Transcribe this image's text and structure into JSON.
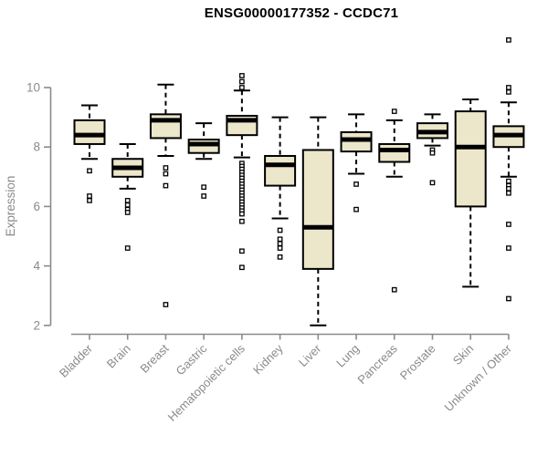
{
  "title": "ENSG00000177352 - CCDC71",
  "chart_data": {
    "type": "boxplot",
    "title": "ENSG00000177352 - CCDC71",
    "ylabel": "Expression",
    "xlabel": "",
    "yticks": [
      2,
      4,
      6,
      8,
      10
    ],
    "ylim": [
      2,
      10
    ],
    "grid": false,
    "legend": false,
    "colors": {
      "box_fill": "#ECE6CA",
      "box_border": "#000000",
      "median": "#000000",
      "whisker": "#000000",
      "axis": "#8a8a8a",
      "tick_label": "#8a8a8a",
      "title": "#000000",
      "background": "#ffffff"
    },
    "categories": [
      "Bladder",
      "Brain",
      "Breast",
      "Gastric",
      "Hematopoietic cells",
      "Kidney",
      "Liver",
      "Lung",
      "Pancreas",
      "Prostate",
      "Skin",
      "Unknown / Other"
    ],
    "boxes": [
      {
        "category": "Bladder",
        "whisker_low": 7.6,
        "q1": 8.1,
        "median": 8.4,
        "q3": 8.9,
        "whisker_high": 9.4,
        "outliers": [
          7.2,
          6.35,
          6.2
        ]
      },
      {
        "category": "Brain",
        "whisker_low": 6.6,
        "q1": 7.0,
        "median": 7.3,
        "q3": 7.6,
        "whisker_high": 8.1,
        "outliers": [
          6.2,
          6.05,
          5.9,
          5.8,
          4.6
        ]
      },
      {
        "category": "Breast",
        "whisker_low": 7.7,
        "q1": 8.3,
        "median": 8.9,
        "q3": 9.1,
        "whisker_high": 10.1,
        "outliers": [
          7.3,
          7.1,
          6.7,
          2.7
        ]
      },
      {
        "category": "Gastric",
        "whisker_low": 7.6,
        "q1": 7.8,
        "median": 8.1,
        "q3": 8.25,
        "whisker_high": 8.8,
        "outliers": [
          6.65,
          6.35
        ]
      },
      {
        "category": "Hematopoietic cells",
        "whisker_low": 7.65,
        "q1": 8.4,
        "median": 8.9,
        "q3": 9.05,
        "whisker_high": 9.9,
        "outliers": [
          10.4,
          10.2,
          10.0,
          7.45,
          7.35,
          7.25,
          7.15,
          7.05,
          6.95,
          6.85,
          6.75,
          6.65,
          6.55,
          6.45,
          6.35,
          6.25,
          6.15,
          6.05,
          5.95,
          5.85,
          5.75,
          5.5,
          4.5,
          3.95
        ]
      },
      {
        "category": "Kidney",
        "whisker_low": 5.6,
        "q1": 6.7,
        "median": 7.4,
        "q3": 7.7,
        "whisker_high": 9.0,
        "outliers": [
          5.2,
          4.9,
          4.75,
          4.6,
          4.3
        ]
      },
      {
        "category": "Liver",
        "whisker_low": 2.0,
        "q1": 3.9,
        "median": 5.3,
        "q3": 7.9,
        "whisker_high": 9.0,
        "outliers": []
      },
      {
        "category": "Lung",
        "whisker_low": 7.1,
        "q1": 7.85,
        "median": 8.25,
        "q3": 8.5,
        "whisker_high": 9.1,
        "outliers": [
          6.75,
          5.9
        ]
      },
      {
        "category": "Pancreas",
        "whisker_low": 7.0,
        "q1": 7.5,
        "median": 7.9,
        "q3": 8.1,
        "whisker_high": 8.9,
        "outliers": [
          9.2,
          3.2
        ]
      },
      {
        "category": "Prostate",
        "whisker_low": 8.05,
        "q1": 8.3,
        "median": 8.5,
        "q3": 8.8,
        "whisker_high": 9.1,
        "outliers": [
          7.9,
          7.8,
          6.8
        ]
      },
      {
        "category": "Skin",
        "whisker_low": 3.3,
        "q1": 6.0,
        "median": 8.0,
        "q3": 9.2,
        "whisker_high": 9.6,
        "outliers": []
      },
      {
        "category": "Unknown / Other",
        "whisker_low": 7.0,
        "q1": 8.0,
        "median": 8.4,
        "q3": 8.7,
        "whisker_high": 9.5,
        "outliers": [
          11.6,
          10.0,
          9.85,
          6.85,
          6.7,
          6.6,
          6.45,
          5.4,
          4.6,
          2.9
        ]
      }
    ]
  }
}
